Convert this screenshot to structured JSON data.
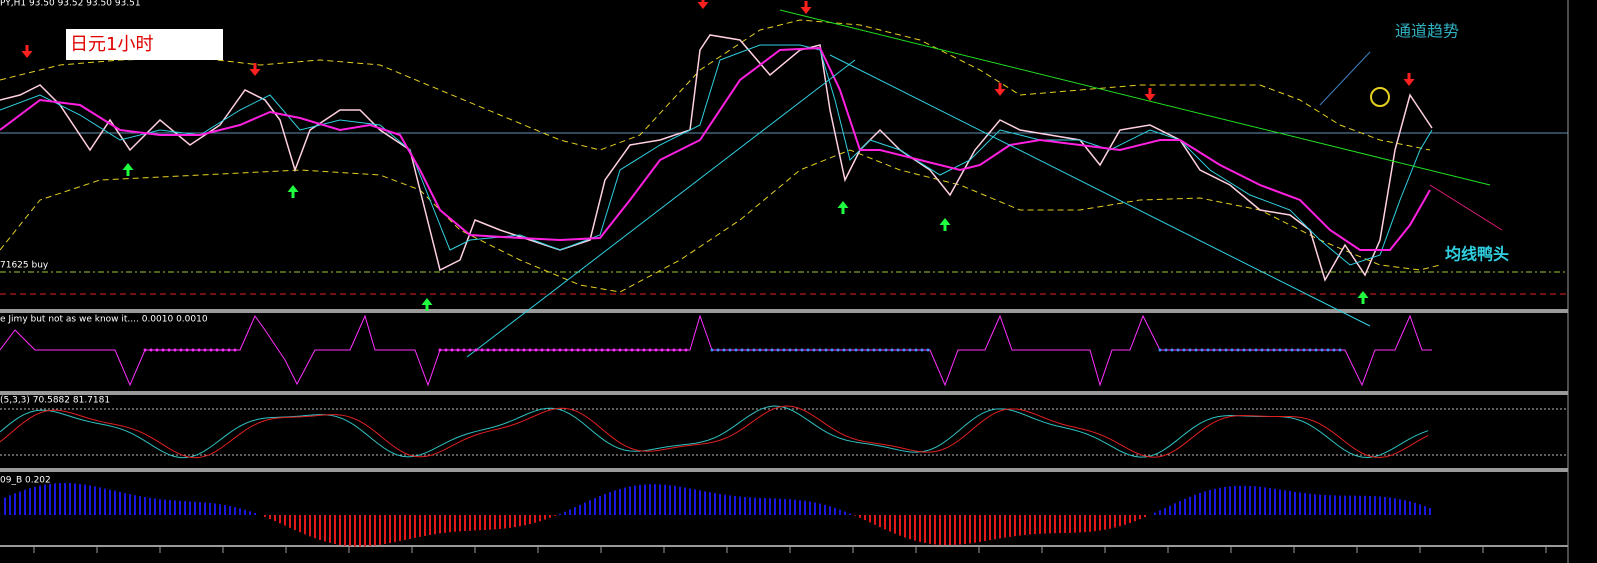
{
  "header": {
    "symbol_info": "PY,H1  93.50 93.52 93.50 93.51"
  },
  "main_panel": {
    "title_box": "日元1小时",
    "channel_note": "通道趋势",
    "ma_note": "均线鸭头",
    "level_label": "71625 buy"
  },
  "indicator_panels": [
    {
      "label": "e Jimy but not as we know it....  0.0010 0.0010"
    },
    {
      "label": "(5,3,3) 70.5882 81.7181"
    },
    {
      "label": "09_B 0.202"
    }
  ]
}
